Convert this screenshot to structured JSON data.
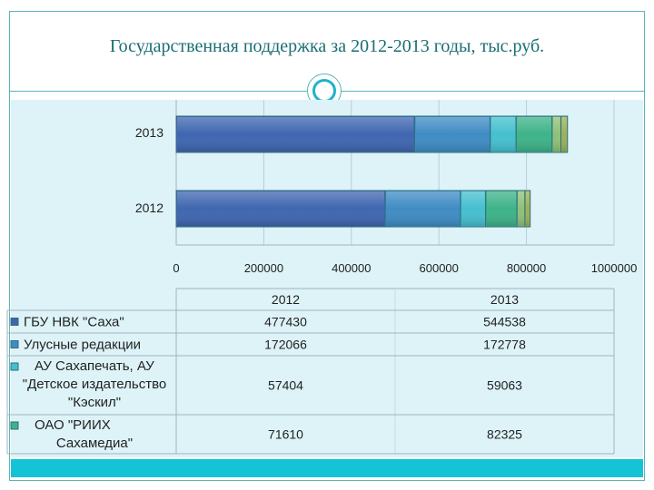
{
  "slide": {
    "title": "Государственная поддержка за 2012-2013 годы, тыс.руб."
  },
  "chart_data": {
    "type": "bar",
    "orientation": "horizontal",
    "stacked": true,
    "categories": [
      "2013",
      "2012"
    ],
    "x_ticks": [
      "0",
      "200000",
      "400000",
      "600000",
      "800000",
      "1000000"
    ],
    "xlim": [
      0,
      1000000
    ],
    "grid": true,
    "series": [
      {
        "name": "ГБУ НВК \"Саха\"",
        "values": [
          544538,
          477430
        ],
        "color": "#3f66b0"
      },
      {
        "name": "Улусные редакции",
        "values": [
          172778,
          172066
        ],
        "color": "#3f8cc4"
      },
      {
        "name": "АУ Сахапечать, АУ \"Детское издательство \"Кэскил\"",
        "values": [
          59063,
          57404
        ],
        "color": "#45bfcf"
      },
      {
        "name": "ОАО \"РИИХ Сахамедиа\"",
        "values": [
          82325,
          71610
        ],
        "color": "#3db389"
      },
      {
        "name": "",
        "values": [
          20000,
          18000
        ],
        "color": "#8fc07a"
      },
      {
        "name": "",
        "values": [
          15000,
          12000
        ],
        "color": "#9cb05a"
      }
    ],
    "table": {
      "columns": [
        "2012",
        "2013"
      ],
      "rows": [
        {
          "label": "ГБУ НВК \"Саха\"",
          "values": [
            "477430",
            "544538"
          ],
          "color": "#3f66b0"
        },
        {
          "label": "Улусные редакции",
          "values": [
            "172066",
            "172778"
          ],
          "color": "#3f8cc4"
        },
        {
          "label": "АУ Сахапечать, АУ \"Детское издательство \"Кэскил\"",
          "lines": [
            "АУ Сахапечать, АУ",
            "\"Детское издательство",
            "\"Кэскил\""
          ],
          "values": [
            "57404",
            "59063"
          ],
          "color": "#45bfcf"
        },
        {
          "label": "ОАО \"РИИХ Сахамедиа\"",
          "lines": [
            "ОАО \"РИИХ",
            "Сахамедиа\""
          ],
          "values": [
            "71610",
            "82325"
          ],
          "color": "#3db389"
        }
      ]
    }
  }
}
